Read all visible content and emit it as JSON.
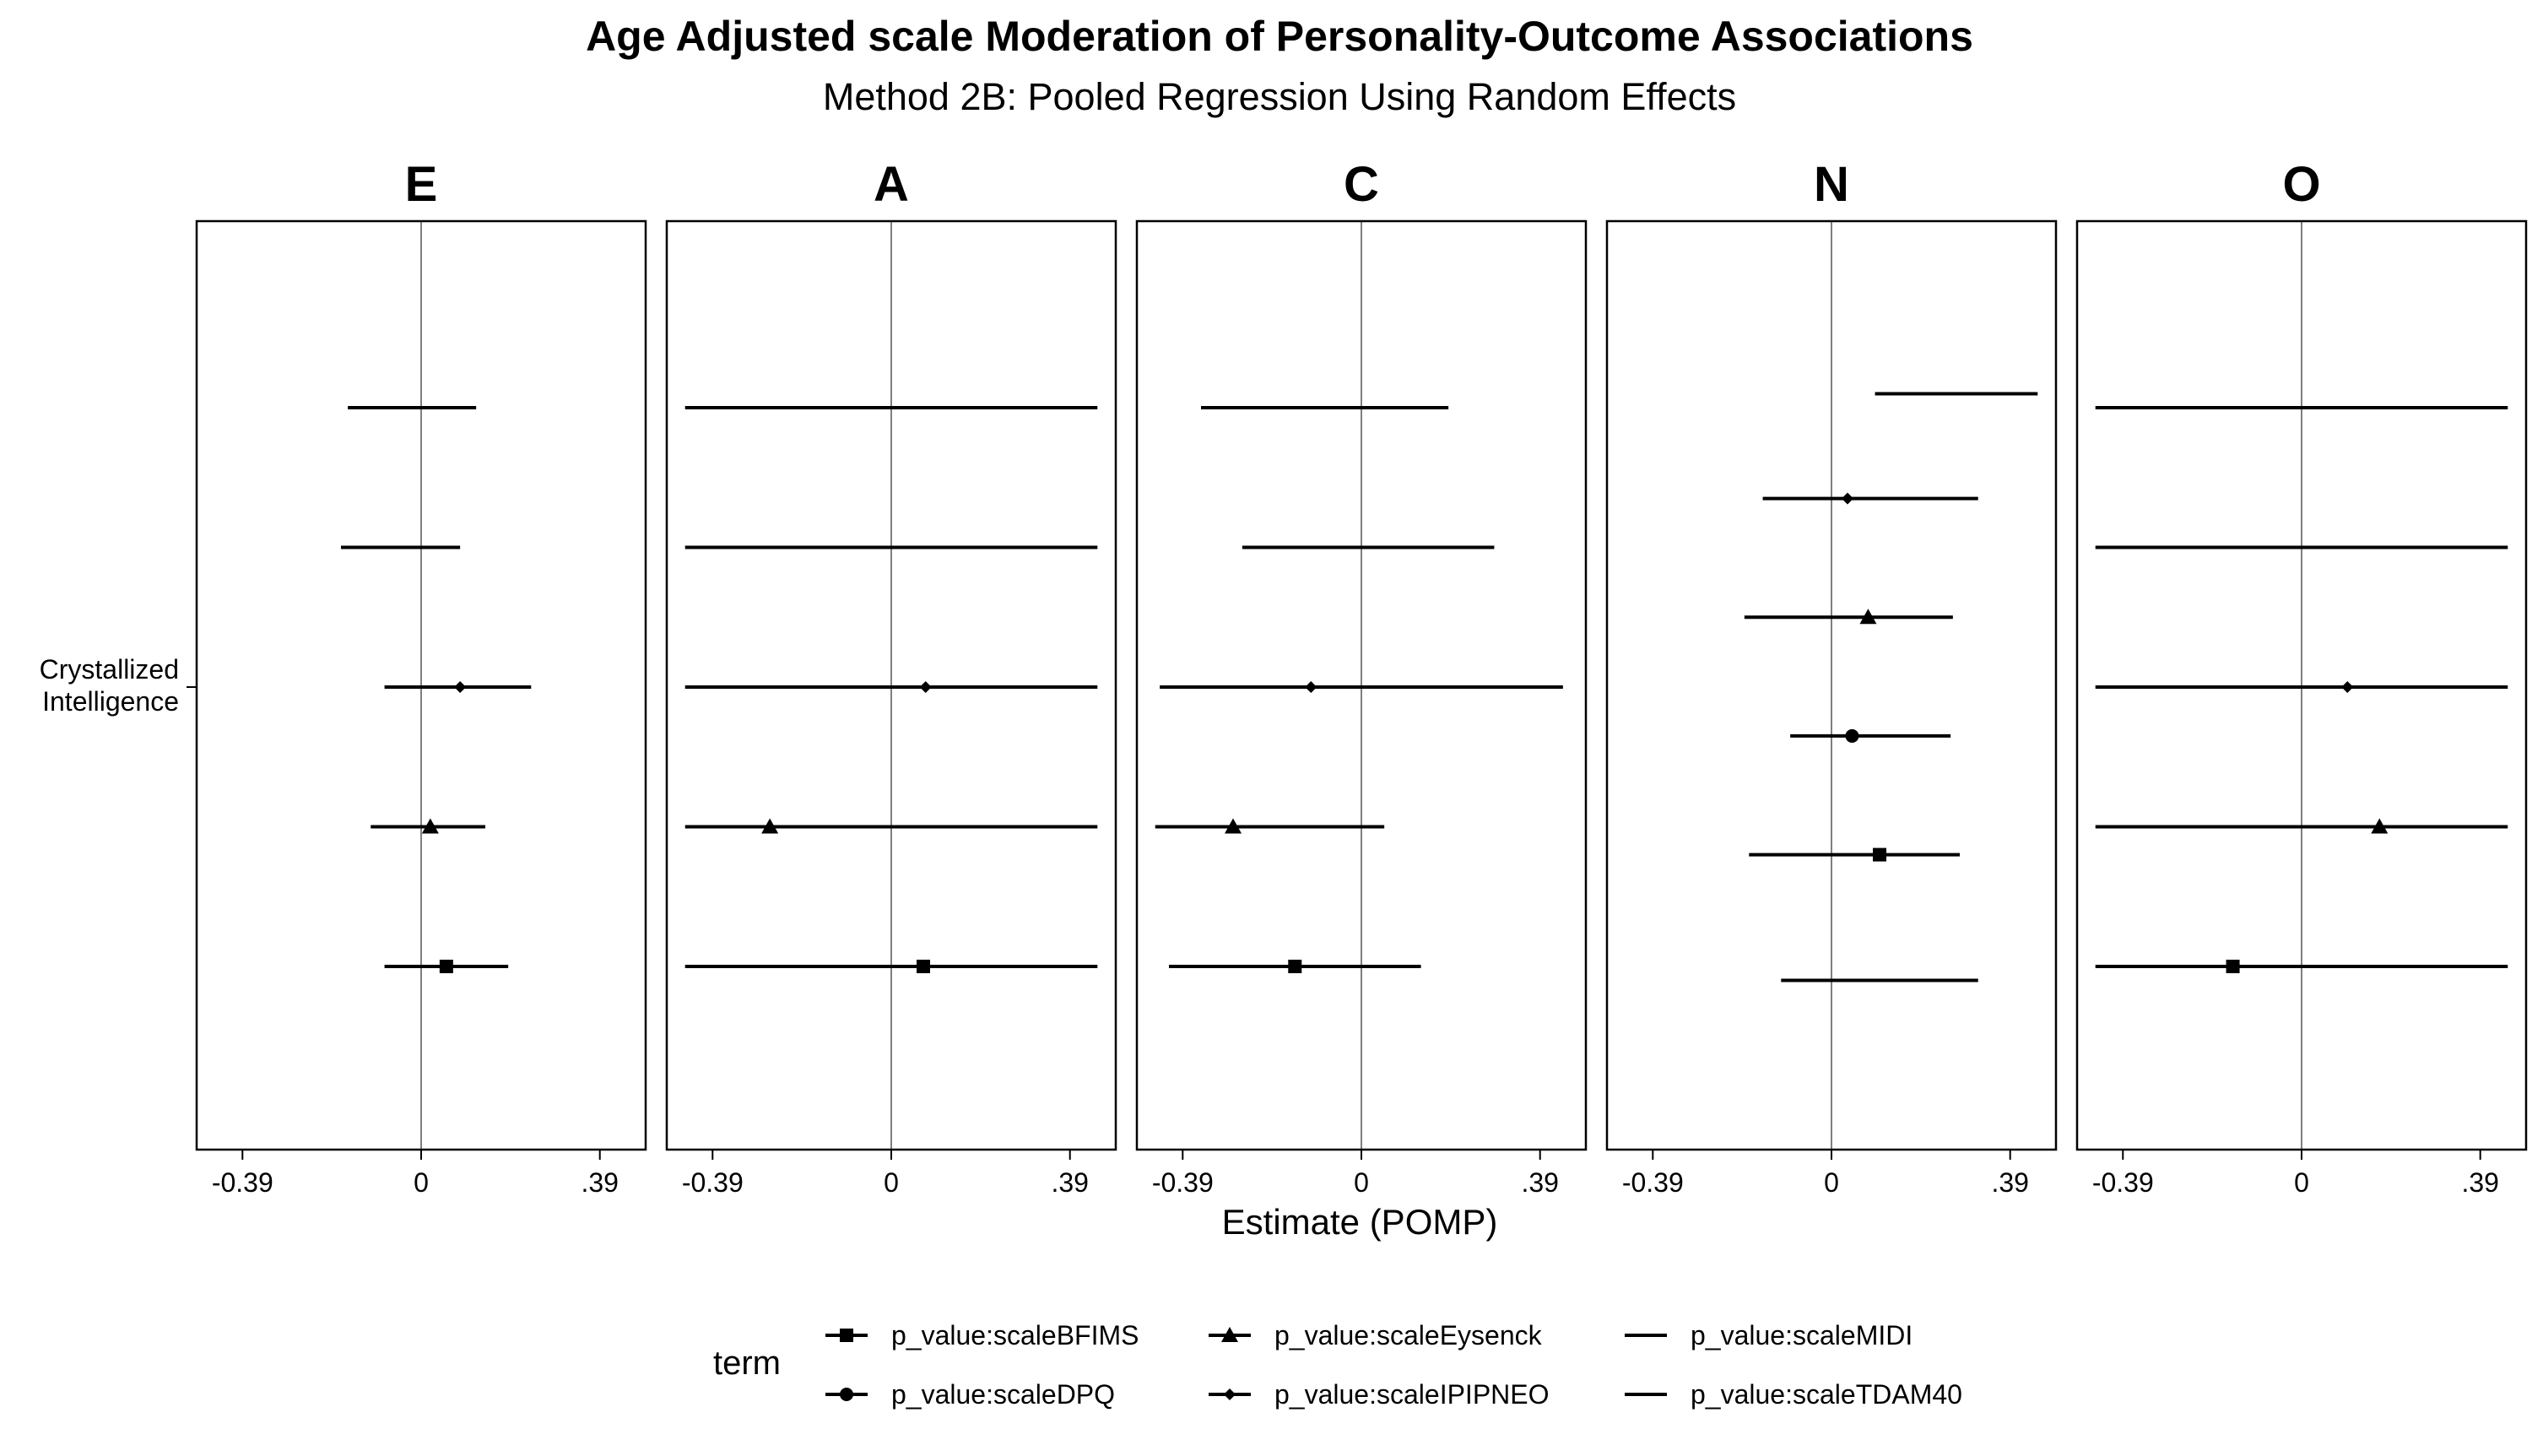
{
  "chart_data": {
    "type": "forest",
    "title": "Age Adjusted scale Moderation of Personality-Outcome Associations",
    "subtitle": "Method 2B: Pooled Regression Using Random Effects",
    "xlabel": "Estimate (POMP)",
    "ylabel": "",
    "y_category": "Crystallized\nIntelligence",
    "x_ticks": [
      {
        "value": -0.39,
        "label": "-0.39"
      },
      {
        "value": 0,
        "label": "0"
      },
      {
        "value": 0.39,
        "label": ".39"
      }
    ],
    "xlim": [
      -0.49,
      0.49
    ],
    "grid": false,
    "legend": {
      "title": "term",
      "position": "bottom",
      "entries": [
        {
          "term": "p_value:scaleBFIMS",
          "shape": "square"
        },
        {
          "term": "p_value:scaleDPQ",
          "shape": "circle"
        },
        {
          "term": "p_value:scaleEysenck",
          "shape": "triangle"
        },
        {
          "term": "p_value:scaleIPIPNEO",
          "shape": "diamond"
        },
        {
          "term": "p_value:scaleMIDI",
          "shape": "none"
        },
        {
          "term": "p_value:scaleTDAM40",
          "shape": "none"
        }
      ]
    },
    "panels": [
      {
        "label": "E",
        "series": [
          {
            "term": "p_value:scaleTDAM40",
            "estimate": null,
            "lower": -0.16,
            "upper": 0.12,
            "row": 1.0
          },
          {
            "term": "p_value:scaleMIDI",
            "estimate": null,
            "lower": -0.175,
            "upper": 0.085,
            "row": 2.0
          },
          {
            "term": "p_value:scaleIPIPNEO",
            "estimate": 0.085,
            "lower": -0.08,
            "upper": 0.24,
            "row": 3.0
          },
          {
            "term": "p_value:scaleEysenck",
            "estimate": 0.02,
            "lower": -0.11,
            "upper": 0.14,
            "row": 4.0
          },
          {
            "term": "p_value:scaleBFIMS",
            "estimate": 0.055,
            "lower": -0.08,
            "upper": 0.19,
            "row": 5.0
          }
        ]
      },
      {
        "label": "A",
        "series": [
          {
            "term": "p_value:scaleTDAM40",
            "estimate": null,
            "lower": -0.45,
            "upper": 0.45,
            "row": 1.0
          },
          {
            "term": "p_value:scaleMIDI",
            "estimate": null,
            "lower": -0.45,
            "upper": 0.45,
            "row": 2.0
          },
          {
            "term": "p_value:scaleIPIPNEO",
            "estimate": 0.075,
            "lower": -0.45,
            "upper": 0.45,
            "row": 3.0
          },
          {
            "term": "p_value:scaleEysenck",
            "estimate": -0.265,
            "lower": -0.45,
            "upper": 0.45,
            "row": 4.0
          },
          {
            "term": "p_value:scaleBFIMS",
            "estimate": 0.07,
            "lower": -0.45,
            "upper": 0.45,
            "row": 5.0
          }
        ]
      },
      {
        "label": "C",
        "series": [
          {
            "term": "p_value:scaleTDAM40",
            "estimate": null,
            "lower": -0.35,
            "upper": 0.19,
            "row": 1.0
          },
          {
            "term": "p_value:scaleMIDI",
            "estimate": null,
            "lower": -0.26,
            "upper": 0.29,
            "row": 2.0
          },
          {
            "term": "p_value:scaleIPIPNEO",
            "estimate": -0.11,
            "lower": -0.44,
            "upper": 0.44,
            "row": 3.0
          },
          {
            "term": "p_value:scaleEysenck",
            "estimate": -0.28,
            "lower": -0.45,
            "upper": 0.05,
            "row": 4.0
          },
          {
            "term": "p_value:scaleBFIMS",
            "estimate": -0.145,
            "lower": -0.42,
            "upper": 0.13,
            "row": 5.0
          }
        ]
      },
      {
        "label": "N",
        "series": [
          {
            "term": "p_value:scaleTDAM40",
            "estimate": null,
            "lower": 0.095,
            "upper": 0.45,
            "row": 0.9
          },
          {
            "term": "p_value:scaleIPIPNEO",
            "estimate": 0.035,
            "lower": -0.15,
            "upper": 0.32,
            "row": 1.65
          },
          {
            "term": "p_value:scaleEysenck",
            "estimate": 0.08,
            "lower": -0.19,
            "upper": 0.265,
            "row": 2.5
          },
          {
            "term": "p_value:scaleDPQ",
            "estimate": 0.045,
            "lower": -0.09,
            "upper": 0.26,
            "row": 3.35
          },
          {
            "term": "p_value:scaleBFIMS",
            "estimate": 0.105,
            "lower": -0.18,
            "upper": 0.28,
            "row": 4.2
          },
          {
            "term": "p_value:scaleMIDI",
            "estimate": null,
            "lower": -0.11,
            "upper": 0.32,
            "row": 5.1
          }
        ]
      },
      {
        "label": "O",
        "series": [
          {
            "term": "p_value:scaleTDAM40",
            "estimate": null,
            "lower": -0.45,
            "upper": 0.45,
            "row": 1.0
          },
          {
            "term": "p_value:scaleMIDI",
            "estimate": null,
            "lower": -0.45,
            "upper": 0.45,
            "row": 2.0
          },
          {
            "term": "p_value:scaleIPIPNEO",
            "estimate": 0.1,
            "lower": -0.45,
            "upper": 0.45,
            "row": 3.0
          },
          {
            "term": "p_value:scaleEysenck",
            "estimate": 0.17,
            "lower": -0.45,
            "upper": 0.45,
            "row": 4.0
          },
          {
            "term": "p_value:scaleBFIMS",
            "estimate": -0.15,
            "lower": -0.45,
            "upper": 0.45,
            "row": 5.0
          }
        ]
      }
    ]
  }
}
